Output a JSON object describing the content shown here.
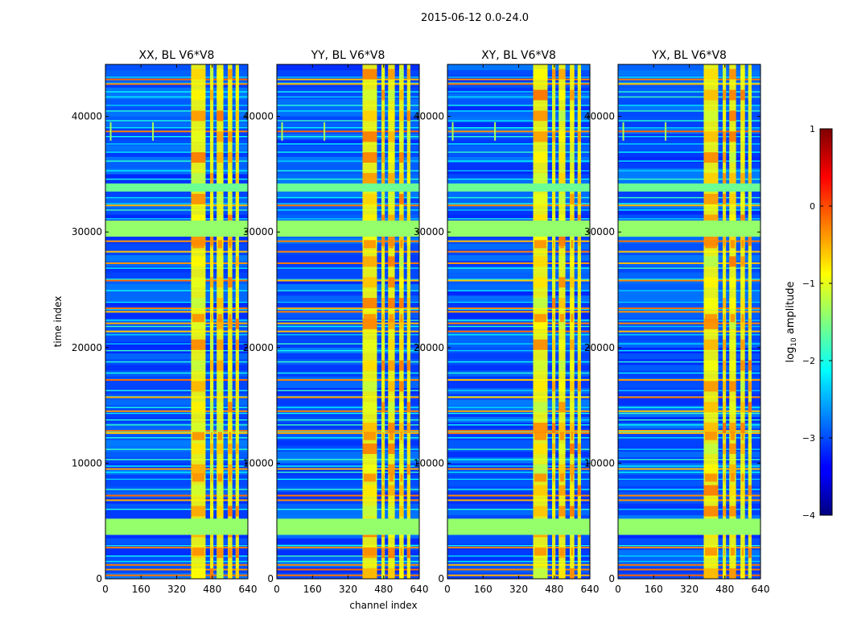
{
  "figure": {
    "suptitle": "2015-06-12 0.0-24.0"
  },
  "colors": {
    "background": "#ffffff",
    "axis": "#000000"
  },
  "chart_data": [
    {
      "type": "heatmap",
      "title": "XX, BL V6*V8",
      "xlabel": "",
      "ylabel": "time index",
      "xlim": [
        0,
        640
      ],
      "ylim": [
        0,
        44500
      ],
      "xticks": [
        "0",
        "160",
        "320",
        "480",
        "640"
      ],
      "yticks": [
        "0",
        "10000",
        "20000",
        "30000",
        "40000"
      ],
      "colormap": "jet",
      "color_range": [
        -4,
        1
      ]
    },
    {
      "type": "heatmap",
      "title": "YY, BL V6*V8",
      "xlabel": "channel index",
      "ylabel": "",
      "xlim": [
        0,
        640
      ],
      "ylim": [
        0,
        44500
      ],
      "xticks": [
        "0",
        "160",
        "320",
        "480",
        "640"
      ],
      "yticks": [
        "0",
        "10000",
        "20000",
        "30000",
        "40000"
      ],
      "colormap": "jet",
      "color_range": [
        -4,
        1
      ]
    },
    {
      "type": "heatmap",
      "title": "XY, BL V6*V8",
      "xlabel": "",
      "ylabel": "",
      "xlim": [
        0,
        640
      ],
      "ylim": [
        0,
        44500
      ],
      "xticks": [
        "0",
        "160",
        "320",
        "480",
        "640"
      ],
      "yticks": [
        "0",
        "10000",
        "20000",
        "30000",
        "40000"
      ],
      "colormap": "jet",
      "color_range": [
        -4,
        1
      ]
    },
    {
      "type": "heatmap",
      "title": "YX, BL V6*V8",
      "xlabel": "",
      "ylabel": "",
      "xlim": [
        0,
        640
      ],
      "ylim": [
        0,
        44500
      ],
      "xticks": [
        "0",
        "160",
        "320",
        "480",
        "640"
      ],
      "yticks": [
        "0",
        "10000",
        "20000",
        "30000",
        "40000"
      ],
      "colormap": "jet",
      "color_range": [
        -4,
        1
      ]
    }
  ],
  "colorbar": {
    "label": "log10 amplitude",
    "label_base": "log",
    "label_sub": "10",
    "label_rest": " amplitude",
    "ticks": [
      "1",
      "0",
      "−1",
      "−2",
      "−3",
      "−4"
    ],
    "range": [
      -4,
      1
    ]
  }
}
